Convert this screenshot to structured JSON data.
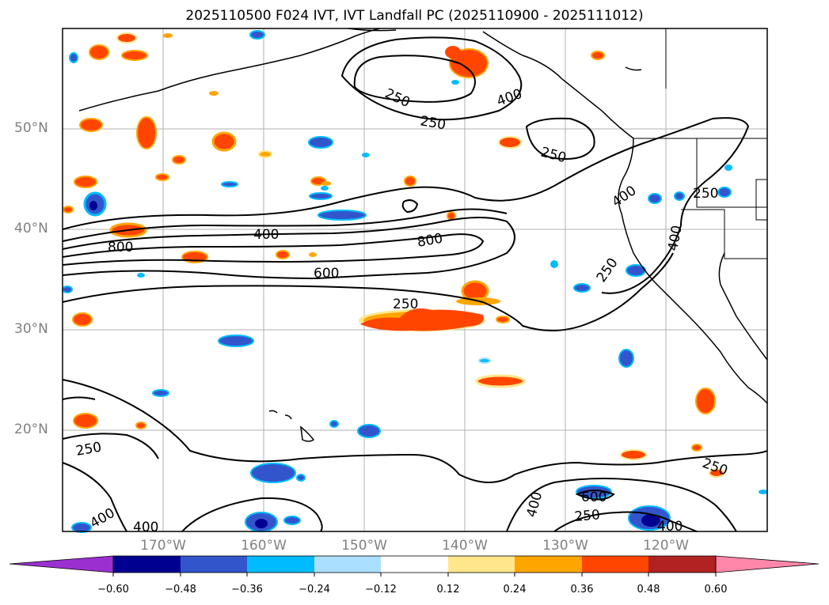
{
  "title": "2025110500 F024 IVT, IVT Landfall PC (2025110900 - 2025111012)",
  "lat_labels": [
    "50°N",
    "40°N",
    "30°N",
    "20°N"
  ],
  "lon_labels": [
    "170°W",
    "160°W",
    "150°W",
    "140°W",
    "130°W",
    "120°W"
  ],
  "contour_labels": {
    "c250_gulf": "250",
    "c400_gulf": "400",
    "c250_ne": "250",
    "c250_mid": "250",
    "c250_pnw": "250",
    "c400_coast": "400",
    "c400_west": "400",
    "c800_west": "800",
    "c800_mid": "800",
    "c600_mid": "600",
    "c250_sub": "250",
    "c400_ca": "400",
    "c250_ca": "250",
    "c250_sw": "250",
    "c400_sw": "400",
    "c400_sw2": "400",
    "c250_se": "250",
    "c600_se": "600",
    "c400_se": "400",
    "c250_se2": "250",
    "c400_se2": "400"
  },
  "colorbar": {
    "ticks": [
      "−0.60",
      "−0.48",
      "−0.36",
      "−0.24",
      "−0.12",
      "0.12",
      "0.24",
      "0.36",
      "0.48",
      "0.60"
    ],
    "colors": [
      "#9b30d0",
      "#000090",
      "#3355cc",
      "#00bbff",
      "#aadfff",
      "#ffffff",
      "#ffe68a",
      "#ffa500",
      "#ff4500",
      "#b22222",
      "#ff88aa"
    ]
  },
  "map": {
    "lat_range": [
      10,
      60
    ],
    "lon_range": [
      -180,
      -110
    ],
    "contour_levels": [
      250,
      400,
      600,
      800
    ],
    "colors": {
      "red": "#ff4500",
      "orange": "#ffa500",
      "yellow": "#ffe68a",
      "blue": "#3355cc",
      "cyan": "#00bbff",
      "lightblue": "#aadfff",
      "navy": "#000090"
    }
  }
}
